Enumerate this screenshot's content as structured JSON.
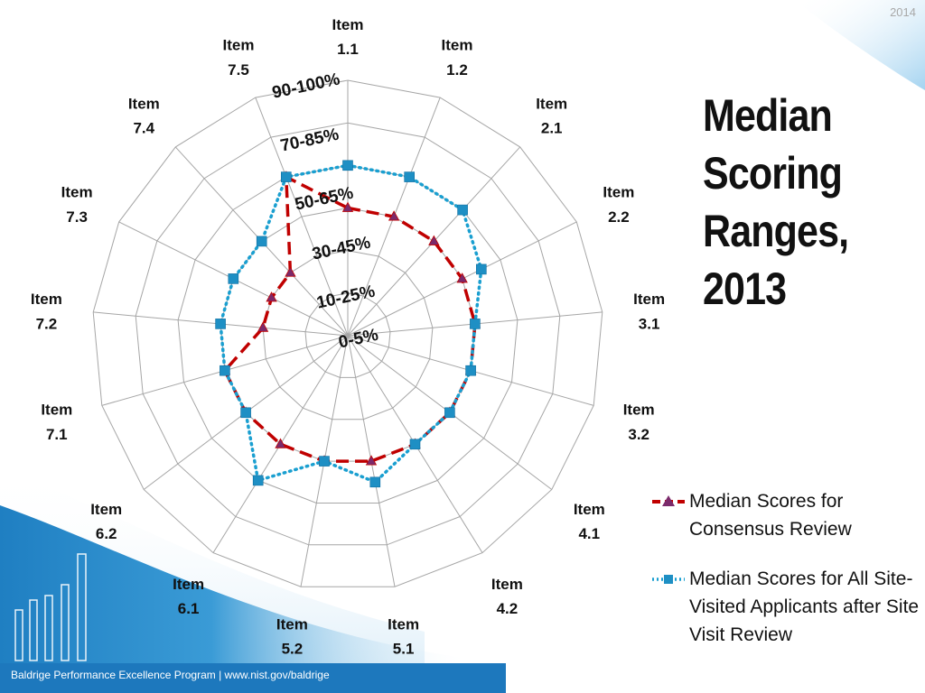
{
  "slide": {
    "year": "2014",
    "title_lines": [
      "Median",
      "Scoring",
      "Ranges,",
      "2013"
    ],
    "footer": "Baldrige Performance Excellence Program | www.nist.gov/baldrige"
  },
  "colors": {
    "consensus": "#c00000",
    "consensus_marker": "#7b2a6b",
    "site_visit": "#1a9fd0",
    "site_visit_marker": "#1e8fc4",
    "grid": "#a6a6a6",
    "background_gradient": "#1f7fc2"
  },
  "chart_data": {
    "type": "radar",
    "categories": [
      "Item\n1.1",
      "Item\n1.2",
      "Item\n2.1",
      "Item\n2.2",
      "Item\n3.1",
      "Item\n3.2",
      "Item\n4.1",
      "Item\n4.2",
      "Item\n5.1",
      "Item\n5.2",
      "Item\n6.1",
      "Item\n6.2",
      "Item\n7.1",
      "Item\n7.2",
      "Item\n7.3",
      "Item\n7.4",
      "Item\n7.5"
    ],
    "range_labels": [
      "0-5%",
      "10-25%",
      "30-45%",
      "50-65%",
      "70-85%",
      "90-100%"
    ],
    "scale": {
      "min": 0,
      "max": 6
    },
    "series": [
      {
        "name": "Median Scores for Consensus Review",
        "style": "dashed-triangle",
        "values": [
          3.0,
          3.0,
          3.0,
          3.0,
          3.0,
          3.0,
          3.0,
          3.0,
          3.0,
          3.0,
          3.0,
          3.0,
          3.0,
          2.0,
          2.0,
          2.0,
          4.0
        ]
      },
      {
        "name": "Median Scores for All Site-Visited Applicants after Site Visit Review",
        "style": "dotted-square",
        "values": [
          4.0,
          4.0,
          4.0,
          3.5,
          3.0,
          3.0,
          3.0,
          3.0,
          3.5,
          3.0,
          4.0,
          3.0,
          3.0,
          3.0,
          3.0,
          3.0,
          4.0
        ]
      }
    ],
    "legend_position": "right-bottom",
    "grid": true
  }
}
